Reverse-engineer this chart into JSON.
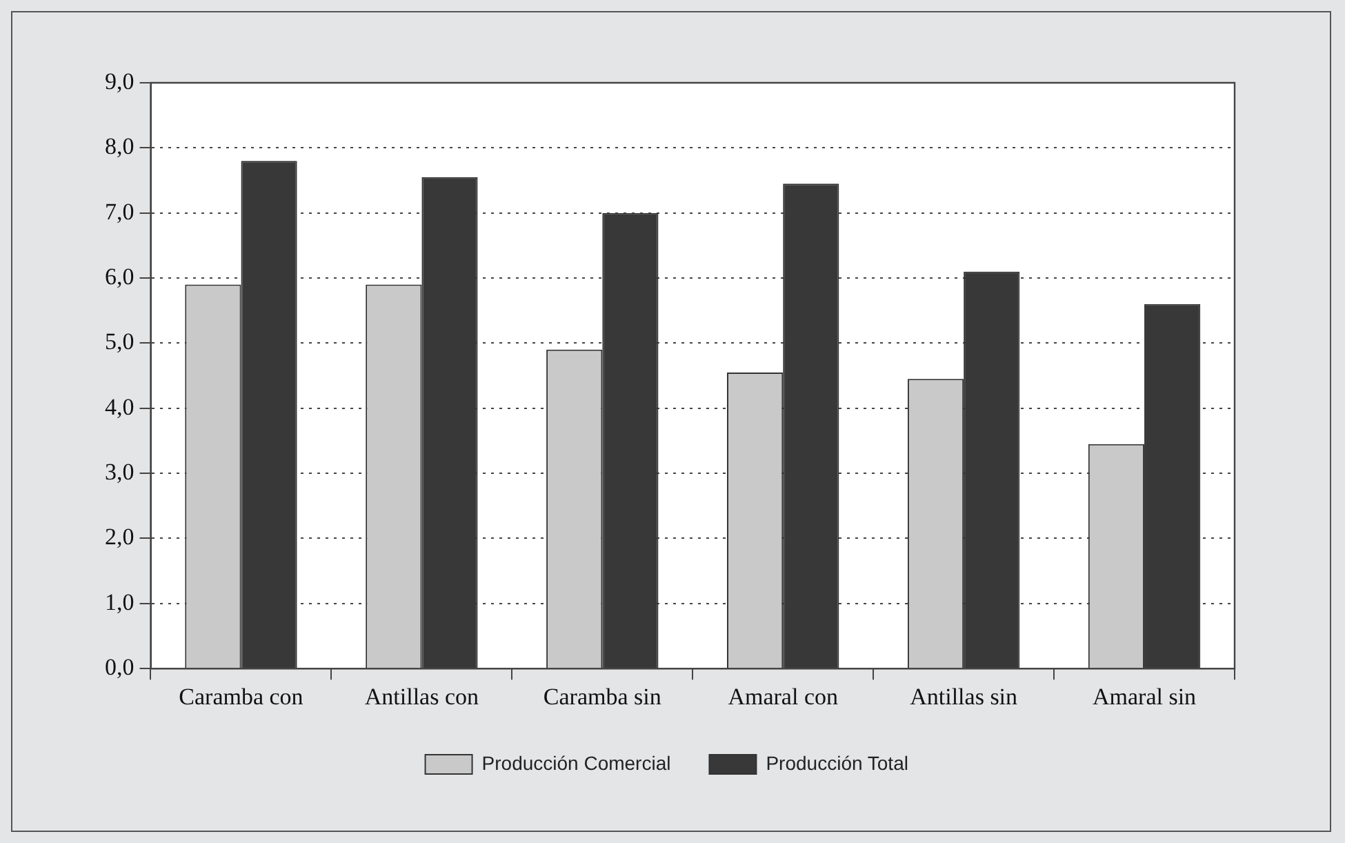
{
  "chart_data": {
    "type": "bar",
    "categories": [
      "Caramba con",
      "Antillas con",
      "Caramba sin",
      "Amaral con",
      "Antillas sin",
      "Amaral sin"
    ],
    "series": [
      {
        "name": "Producción Comercial",
        "color": "#c9c9c9",
        "values": [
          5.9,
          5.9,
          4.9,
          4.55,
          4.45,
          3.45
        ]
      },
      {
        "name": "Producción Total",
        "color": "#383838",
        "values": [
          7.8,
          7.55,
          7.0,
          7.45,
          6.1,
          5.6
        ]
      }
    ],
    "ylim": [
      0,
      9
    ],
    "yticks": [
      {
        "value": 0,
        "label": "0,0"
      },
      {
        "value": 1,
        "label": "1,0"
      },
      {
        "value": 2,
        "label": "2,0"
      },
      {
        "value": 3,
        "label": "3,0"
      },
      {
        "value": 4,
        "label": "4,0"
      },
      {
        "value": 5,
        "label": "5,0"
      },
      {
        "value": 6,
        "label": "6,0"
      },
      {
        "value": 7,
        "label": "7,0"
      },
      {
        "value": 8,
        "label": "8,0"
      },
      {
        "value": 9,
        "label": "9,0"
      }
    ],
    "grid": "y",
    "legend": "bottom"
  }
}
